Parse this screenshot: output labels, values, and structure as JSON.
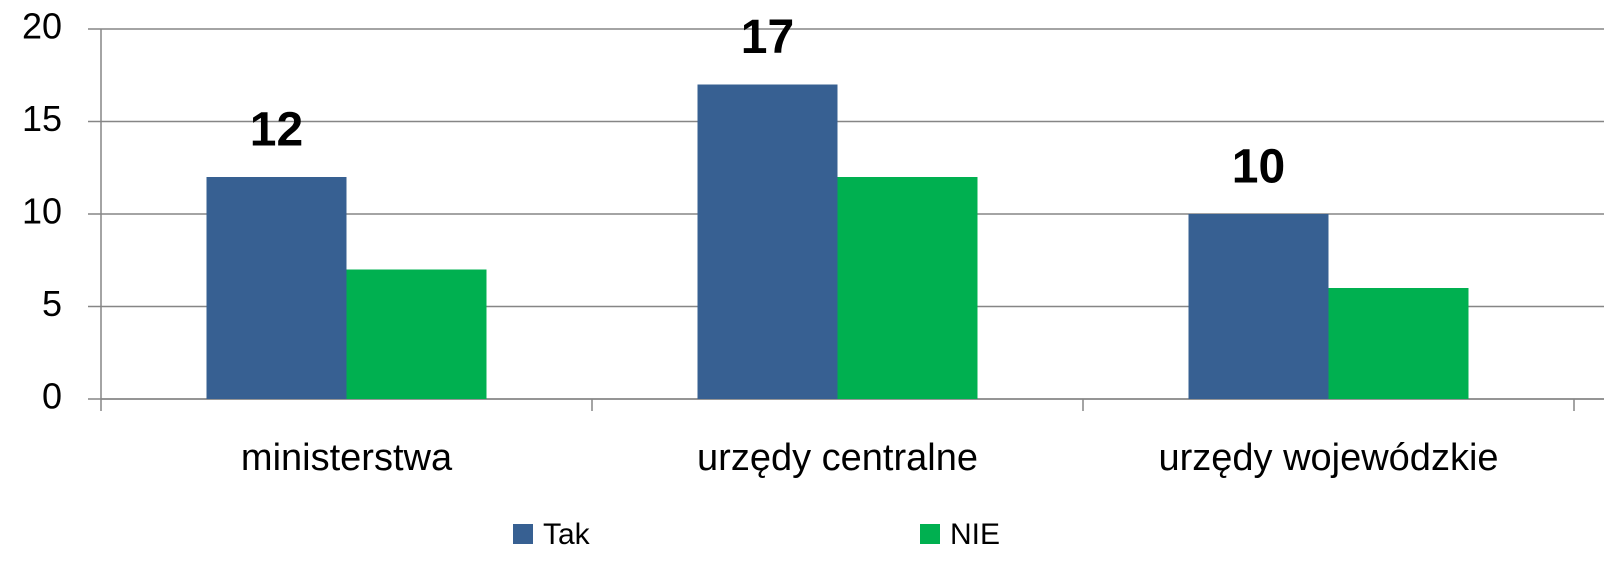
{
  "chart_data": {
    "type": "bar",
    "categories": [
      "ministerstwa",
      "urzędy centralne",
      "urzędy wojewódzkie"
    ],
    "series": [
      {
        "name": "Tak",
        "color": "#376092",
        "values": [
          12,
          17,
          10
        ],
        "labels": true
      },
      {
        "name": "NIE",
        "color": "#00b050",
        "values": [
          7,
          12,
          6
        ],
        "labels": false
      }
    ],
    "ylim": [
      0,
      20
    ],
    "yticks": [
      0,
      5,
      10,
      15,
      20
    ],
    "grid": true,
    "legend": "bottom"
  }
}
